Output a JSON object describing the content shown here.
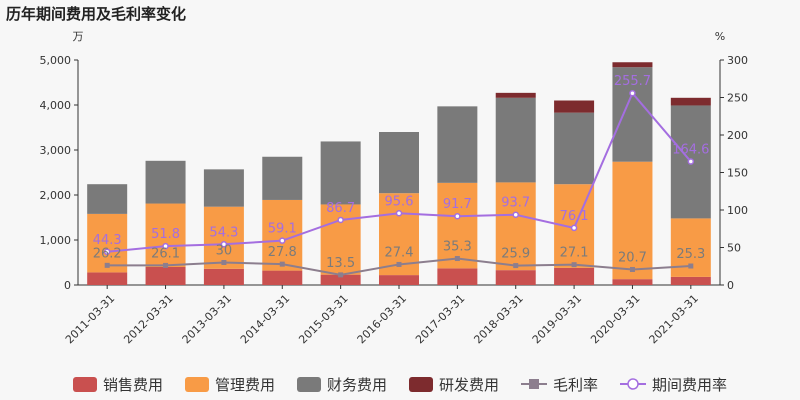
{
  "page_title": "历年期间费用及毛利率变化",
  "chart_data": {
    "type": "bar",
    "title": "历年期间费用及毛利率变化",
    "stacked": true,
    "categories": [
      "2011-03-31",
      "2012-03-31",
      "2013-03-31",
      "2014-03-31",
      "2015-03-31",
      "2016-03-31",
      "2017-03-31",
      "2018-03-31",
      "2019-03-31",
      "2020-03-31",
      "2021-03-31"
    ],
    "left_axis": {
      "unit": "万",
      "ylim": [
        0,
        5000
      ],
      "ticks": [
        "0",
        "1,000",
        "2,000",
        "3,000",
        "4,000",
        "5,000"
      ],
      "tick_values": [
        0,
        1000,
        2000,
        3000,
        4000,
        5000
      ]
    },
    "right_axis": {
      "unit": "%",
      "ylim": [
        0,
        300
      ],
      "ticks": [
        "0",
        "50",
        "100",
        "150",
        "200",
        "250",
        "300"
      ],
      "tick_values": [
        0,
        50,
        100,
        150,
        200,
        250,
        300
      ]
    },
    "series": [
      {
        "name": "销售费用",
        "kind": "bar",
        "color": "#c9504f",
        "values": [
          280,
          400,
          360,
          320,
          230,
          220,
          370,
          330,
          380,
          130,
          180
        ]
      },
      {
        "name": "管理费用",
        "kind": "bar",
        "color": "#f89b46",
        "values": [
          1300,
          1410,
          1380,
          1570,
          1560,
          1820,
          1900,
          1950,
          1860,
          2610,
          1300
        ]
      },
      {
        "name": "财务费用",
        "kind": "bar",
        "color": "#7a7a7a",
        "values": [
          660,
          950,
          830,
          960,
          1400,
          1360,
          1700,
          1880,
          1590,
          2100,
          2510
        ]
      },
      {
        "name": "研发费用",
        "kind": "bar",
        "color": "#7d2b2e",
        "values": [
          0,
          0,
          0,
          0,
          0,
          0,
          0,
          110,
          270,
          110,
          170
        ]
      },
      {
        "name": "毛利率",
        "kind": "line",
        "axis": "right",
        "color": "#8c7e8e",
        "labels_color": "#7b7b7b",
        "values": [
          26.2,
          26.1,
          30,
          27.8,
          13.5,
          27.4,
          35.3,
          25.9,
          27.1,
          20.7,
          25.3
        ],
        "labels": [
          "26.2",
          "26.1",
          "30",
          "27.8",
          "13.5",
          "27.4",
          "35.3",
          "25.9",
          "27.1",
          "20.7",
          "25.3"
        ]
      },
      {
        "name": "期间费用率",
        "kind": "line",
        "axis": "right",
        "color": "#a46ee0",
        "labels_color": "#a46ee0",
        "values": [
          44.3,
          51.8,
          54.3,
          59.1,
          86.7,
          95.6,
          91.7,
          93.7,
          76.1,
          255.7,
          164.6
        ],
        "labels": [
          "44.3",
          "51.8",
          "54.3",
          "59.1",
          "86.7",
          "95.6",
          "91.7",
          "93.7",
          "76.1",
          "255.7",
          "164.6"
        ]
      }
    ],
    "grid": false,
    "legend_position": "bottom"
  }
}
